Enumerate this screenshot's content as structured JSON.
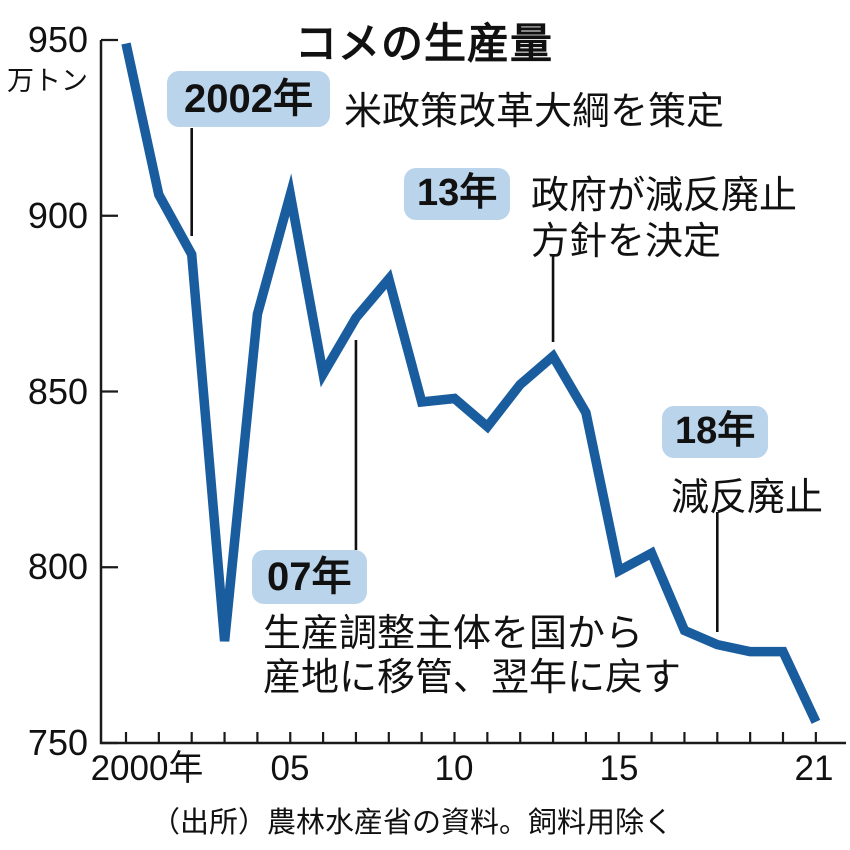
{
  "chart_data": {
    "type": "line",
    "title": "コメの生産量",
    "unit_label": "万トン",
    "x": [
      2000,
      2001,
      2002,
      2003,
      2004,
      2005,
      2006,
      2007,
      2008,
      2009,
      2010,
      2011,
      2012,
      2013,
      2014,
      2015,
      2016,
      2017,
      2018,
      2019,
      2020,
      2021
    ],
    "values": [
      949,
      906,
      889,
      779,
      872,
      906,
      855,
      871,
      882,
      847,
      848,
      840,
      852,
      860,
      844,
      799,
      804,
      782,
      778,
      776,
      776,
      756
    ],
    "ylim": [
      750,
      950
    ],
    "yticks": [
      950,
      900,
      850,
      800,
      750
    ],
    "ytick_labels": [
      "950",
      "900",
      "850",
      "800",
      "750"
    ],
    "xtick_labels": [
      "2000年",
      "05",
      "10",
      "15",
      "21"
    ],
    "grid": false,
    "legend_position": "none",
    "line_color": "#1a5d9e",
    "axis_color": "#1a1a1a",
    "badge_color": "#b9d4eb",
    "annotations": {
      "a2002": {
        "badge": "2002年",
        "text": "米政策改革大綱を策定"
      },
      "a13": {
        "badge": "13年",
        "line1": "政府が減反廃止",
        "line2": "方針を決定"
      },
      "a18": {
        "badge": "18年",
        "text": "減反廃止"
      },
      "a07": {
        "badge": "07年",
        "line1": "生産調整主体を国から",
        "line2": "産地に移管、翌年に戻す"
      }
    },
    "source": "（出所）農林水産省の資料。飼料用除く"
  }
}
